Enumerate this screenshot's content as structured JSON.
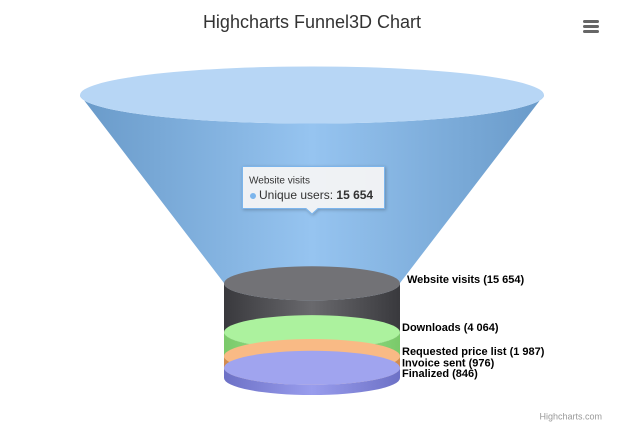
{
  "chart_data": {
    "type": "funnel3d",
    "title": "Highcharts Funnel3D Chart",
    "categories": [
      "Website visits",
      "Downloads",
      "Requested price list",
      "Invoice sent",
      "Finalized"
    ],
    "series": [
      {
        "name": "Unique users",
        "values": [
          15654,
          4064,
          1987,
          976,
          846
        ],
        "value_labels": [
          "Website visits (15 654)",
          "Downloads (4 064)",
          "Requested price list (1 987)",
          "Invoice sent (976)",
          "Finalized (846)"
        ],
        "colors": [
          "#7cb5ec",
          "#434348",
          "#90ed7d",
          "#f7a35c",
          "#8085e9"
        ]
      }
    ],
    "tooltip": {
      "header": "Website visits",
      "label": "Unique users:",
      "value": "15 654"
    },
    "credits": "Highcharts.com"
  }
}
